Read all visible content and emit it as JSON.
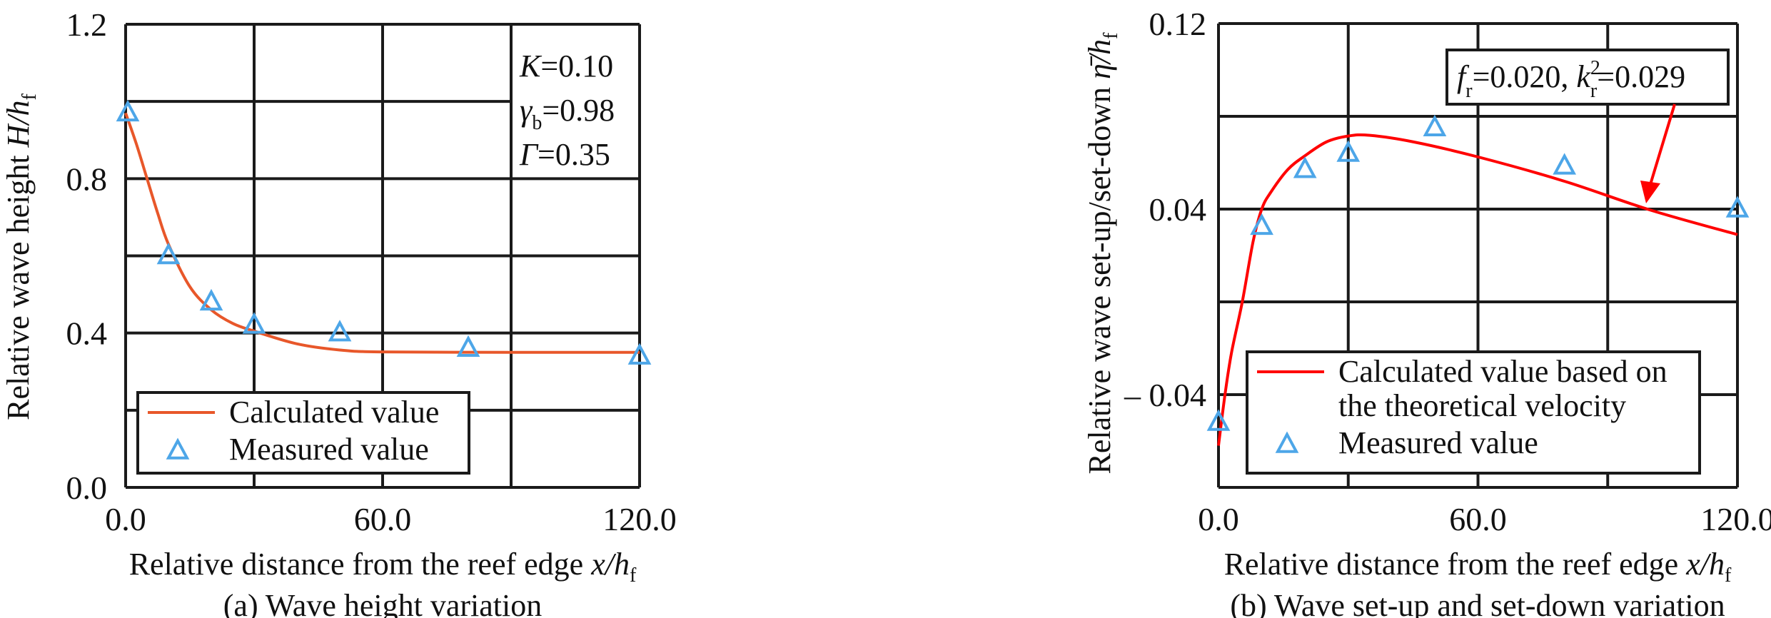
{
  "chart_data": [
    {
      "type": "line",
      "caption": "(a) Wave height variation",
      "xlabel": {
        "text": "Relative distance from the reef edge ",
        "var": "x/h",
        "sub": "f"
      },
      "ylabel": {
        "text": "Relative wave height ",
        "var": "H/h",
        "sub": "f"
      },
      "xlim": [
        0,
        120
      ],
      "ylim": [
        0,
        1.2
      ],
      "x_grid": [
        0,
        30,
        60,
        90,
        120
      ],
      "y_grid": [
        0,
        0.2,
        0.4,
        0.6,
        0.8,
        1.0,
        1.2
      ],
      "x_ticks": [
        {
          "value": 0,
          "label": "0.0"
        },
        {
          "value": 60,
          "label": "60.0"
        },
        {
          "value": 120,
          "label": "120.0"
        }
      ],
      "y_ticks": [
        {
          "value": 0,
          "label": "0.0"
        },
        {
          "value": 0.4,
          "label": "0.4"
        },
        {
          "value": 0.8,
          "label": "0.8"
        },
        {
          "value": 1.2,
          "label": "1.2"
        }
      ],
      "grid": true,
      "annotation": [
        {
          "var": "K",
          "sub": "",
          "val": "=0.10"
        },
        {
          "var": "γ",
          "sub": "b",
          "val": "=0.98"
        },
        {
          "var": "Γ",
          "sub": "",
          "val": "=0.35"
        }
      ],
      "legend_placement": "bottom-left",
      "series": [
        {
          "name": "Calculated value",
          "kind": "line",
          "color": "#E8572A",
          "x": [
            0,
            2.5,
            5,
            7.5,
            10,
            15,
            20,
            25,
            30,
            40,
            50,
            60,
            90,
            120
          ],
          "y": [
            0.97,
            0.89,
            0.8,
            0.71,
            0.63,
            0.52,
            0.46,
            0.425,
            0.405,
            0.372,
            0.356,
            0.351,
            0.35,
            0.35
          ]
        },
        {
          "name": "Measured value",
          "kind": "scatter",
          "marker": "open-triangle",
          "color": "#4DA6E8",
          "x": [
            0.5,
            10,
            20,
            30,
            50,
            80,
            120
          ],
          "y": [
            0.97,
            0.6,
            0.48,
            0.42,
            0.4,
            0.36,
            0.34
          ]
        }
      ]
    },
    {
      "type": "line",
      "caption": "(b) Wave set-up and set-down variation",
      "xlabel": {
        "text": "Relative distance from the reef edge ",
        "var": "x/h",
        "sub": "f"
      },
      "ylabel": {
        "text": "Relative wave set-up/set-down ",
        "var": "η̄/h",
        "sub": "f"
      },
      "xlim": [
        0,
        120
      ],
      "ylim": [
        -0.08,
        0.12
      ],
      "x_grid": [
        0,
        30,
        60,
        90,
        120
      ],
      "y_grid": [
        -0.08,
        -0.04,
        0,
        0.04,
        0.08,
        0.12
      ],
      "x_ticks": [
        {
          "value": 0,
          "label": "0.0"
        },
        {
          "value": 60,
          "label": "60.0"
        },
        {
          "value": 120,
          "label": "120.0"
        }
      ],
      "y_ticks": [
        {
          "value": -0.04,
          "label": "– 0.04"
        },
        {
          "value": 0.04,
          "label": "0.04"
        },
        {
          "value": 0.12,
          "label": "0.12"
        }
      ],
      "grid": true,
      "annotation": {
        "parts": [
          {
            "var": "f",
            "sub": "r",
            "sup": "",
            "val": "=0.020, "
          },
          {
            "var": "k",
            "sub": "r",
            "sup": "2",
            "val": "=0.029"
          }
        ],
        "arrow_color": "#FF0000"
      },
      "legend_placement": "bottom-right",
      "series": [
        {
          "name": "Calculated value based on the theoretical velocity",
          "name_lines": [
            "Calculated value based on",
            "the theoretical velocity"
          ],
          "kind": "line",
          "color": "#FF0000",
          "x": [
            0,
            1.5,
            3,
            5.5,
            8,
            10,
            12,
            16,
            20,
            25,
            30,
            35,
            45,
            60,
            80,
            100,
            120
          ],
          "y": [
            -0.062,
            -0.04,
            -0.022,
            0.0,
            0.026,
            0.04,
            0.047,
            0.057,
            0.063,
            0.069,
            0.0715,
            0.0718,
            0.069,
            0.0625,
            0.052,
            0.0395,
            0.029
          ]
        },
        {
          "name": "Measured value",
          "kind": "scatter",
          "marker": "open-triangle",
          "color": "#4DA6E8",
          "x": [
            0,
            10,
            20,
            30,
            50,
            80,
            120
          ],
          "y": [
            -0.052,
            0.0325,
            0.057,
            0.064,
            0.075,
            0.0585,
            0.04
          ]
        }
      ]
    }
  ]
}
